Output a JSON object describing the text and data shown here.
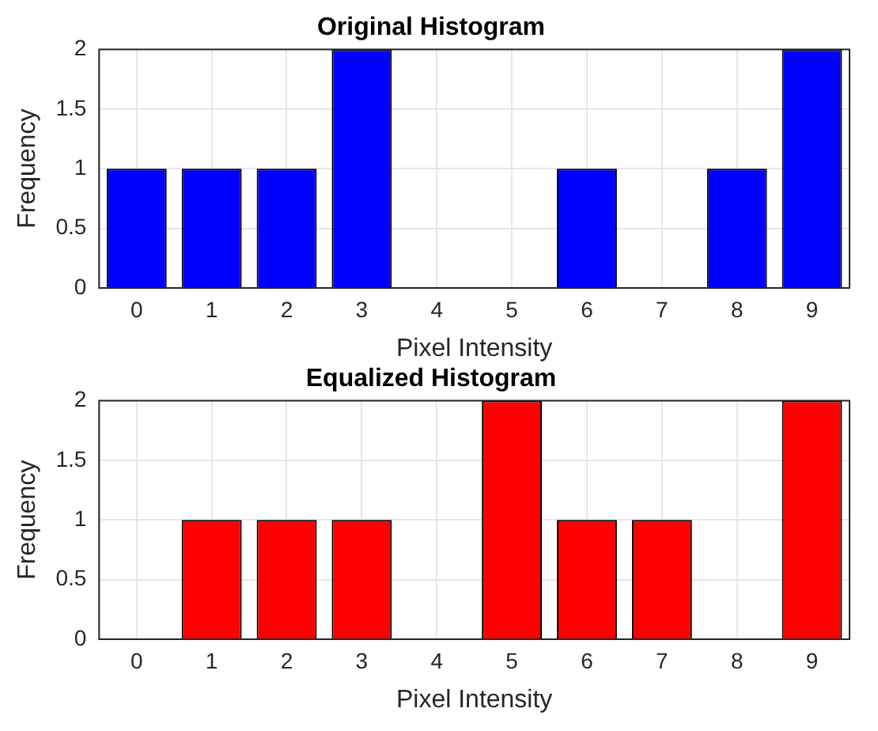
{
  "chart_data": [
    {
      "type": "bar",
      "title": "Original Histogram",
      "xlabel": "Pixel Intensity",
      "ylabel": "Frequency",
      "categories": [
        "0",
        "1",
        "2",
        "3",
        "4",
        "5",
        "6",
        "7",
        "8",
        "9"
      ],
      "values": [
        1,
        1,
        1,
        2,
        0,
        0,
        1,
        0,
        1,
        2
      ],
      "color": "#0000ff",
      "ylim": [
        0,
        2
      ],
      "yticks": [
        0,
        0.5,
        1,
        1.5,
        2
      ],
      "grid": true
    },
    {
      "type": "bar",
      "title": "Equalized Histogram",
      "xlabel": "Pixel Intensity",
      "ylabel": "Frequency",
      "categories": [
        "0",
        "1",
        "2",
        "3",
        "4",
        "5",
        "6",
        "7",
        "8",
        "9"
      ],
      "values": [
        0,
        1,
        1,
        1,
        0,
        2,
        1,
        1,
        0,
        2
      ],
      "color": "#ff0000",
      "ylim": [
        0,
        2
      ],
      "yticks": [
        0,
        0.5,
        1,
        1.5,
        2
      ],
      "grid": true
    }
  ]
}
